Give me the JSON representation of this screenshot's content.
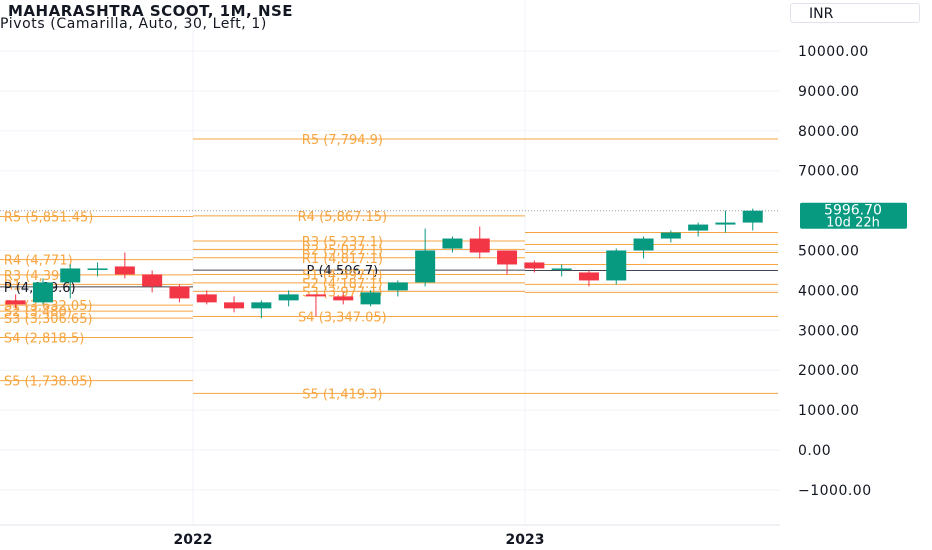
{
  "header": {
    "title": "MAHARASHTRA SCOOT, 1M, NSE",
    "subtitle": "Pivots (Camarilla, Auto, 30, Left, 1)",
    "currency": "INR"
  },
  "price_badge": {
    "price": "5996.70",
    "countdown": "10d 22h"
  },
  "colors": {
    "up": "#26a69a",
    "up_body": "#089981",
    "down": "#f23645",
    "pivot": "#f7a541",
    "pivot_label": "#f7a541",
    "grid": "#f0f3fa",
    "axis_text": "#131722"
  },
  "chart_data": {
    "type": "candlestick",
    "title": "MAHARASHTRA SCOOT, 1M, NSE",
    "y_ticks": [
      "10000.00",
      "9000.00",
      "8000.00",
      "7000.00",
      "5000.00",
      "4000.00",
      "3000.00",
      "2000.00",
      "1000.00",
      "0.00",
      "−1000.00"
    ],
    "y_tick_values": [
      10000,
      9000,
      8000,
      7000,
      5000,
      4000,
      3000,
      2000,
      1000,
      0,
      -1000
    ],
    "ylim": [
      -1400,
      11100
    ],
    "x_ticks": [
      "2022",
      "2023"
    ],
    "last_price": 5996.7,
    "candles": [
      {
        "o": 3750,
        "h": 3900,
        "l": 3550,
        "c": 3650
      },
      {
        "o": 3700,
        "h": 4300,
        "l": 3650,
        "c": 4200
      },
      {
        "o": 4200,
        "h": 4650,
        "l": 3800,
        "c": 4550
      },
      {
        "o": 4550,
        "h": 4700,
        "l": 4350,
        "c": 4550
      },
      {
        "o": 4600,
        "h": 4950,
        "l": 4300,
        "c": 4400
      },
      {
        "o": 4400,
        "h": 4500,
        "l": 3950,
        "c": 4100
      },
      {
        "o": 4100,
        "h": 4150,
        "l": 3700,
        "c": 3800
      },
      {
        "o": 3900,
        "h": 4000,
        "l": 3650,
        "c": 3700
      },
      {
        "o": 3700,
        "h": 3850,
        "l": 3450,
        "c": 3550
      },
      {
        "o": 3550,
        "h": 3750,
        "l": 3300,
        "c": 3700
      },
      {
        "o": 3750,
        "h": 4000,
        "l": 3600,
        "c": 3900
      },
      {
        "o": 3900,
        "h": 3900,
        "l": 3350,
        "c": 3850
      },
      {
        "o": 3850,
        "h": 3950,
        "l": 3650,
        "c": 3750
      },
      {
        "o": 3650,
        "h": 4000,
        "l": 3600,
        "c": 3950
      },
      {
        "o": 4000,
        "h": 4250,
        "l": 3850,
        "c": 4200
      },
      {
        "o": 4200,
        "h": 5550,
        "l": 4100,
        "c": 5000
      },
      {
        "o": 5050,
        "h": 5350,
        "l": 4950,
        "c": 5300
      },
      {
        "o": 5300,
        "h": 5600,
        "l": 4800,
        "c": 4950
      },
      {
        "o": 5000,
        "h": 5000,
        "l": 4400,
        "c": 4650
      },
      {
        "o": 4700,
        "h": 4750,
        "l": 4450,
        "c": 4550
      },
      {
        "o": 4550,
        "h": 4650,
        "l": 4350,
        "c": 4550
      },
      {
        "o": 4450,
        "h": 4500,
        "l": 4100,
        "c": 4250
      },
      {
        "o": 4250,
        "h": 5050,
        "l": 4150,
        "c": 5000
      },
      {
        "o": 5000,
        "h": 5350,
        "l": 4800,
        "c": 5300
      },
      {
        "o": 5300,
        "h": 5500,
        "l": 5200,
        "c": 5450
      },
      {
        "o": 5500,
        "h": 5700,
        "l": 5350,
        "c": 5650
      },
      {
        "o": 5650,
        "h": 6000,
        "l": 5450,
        "c": 5700
      },
      {
        "o": 5700,
        "h": 6050,
        "l": 5500,
        "c": 5997
      }
    ],
    "pivot_periods": [
      {
        "levels": [
          {
            "name": "R5",
            "value": 5851.45,
            "label": "R5 (5,851.45)"
          },
          {
            "name": "R4",
            "value": 4771,
            "label": "R4 (4,771)"
          },
          {
            "name": "R3",
            "value": 4390,
            "label": "R3 (4,390)"
          },
          {
            "name": "R1",
            "value": 4150,
            "label": "R1"
          },
          {
            "name": "P",
            "value": 4089.6,
            "label": "P (4,089.6)"
          },
          {
            "name": "S1",
            "value": 3632.05,
            "label": "S1 (3,632.05)"
          },
          {
            "name": "S2",
            "value": 3480,
            "label": "S2 (3,480)"
          },
          {
            "name": "S3",
            "value": 3306.65,
            "label": "S3 (3,306.65)"
          },
          {
            "name": "S4",
            "value": 2818.5,
            "label": "S4 (2,818.5)"
          },
          {
            "name": "S5",
            "value": 1738.05,
            "label": "S5 (1,738.05)"
          }
        ]
      },
      {
        "levels": [
          {
            "name": "R5",
            "value": 7794.9,
            "label": "R5 (7,794.9)"
          },
          {
            "name": "R4",
            "value": 5867.15,
            "label": "R4 (5,867.15)"
          },
          {
            "name": "R3",
            "value": 5237.1,
            "label": "R3 (5,237.1)"
          },
          {
            "name": "R2",
            "value": 5027.1,
            "label": "R2 (5,027.1)"
          },
          {
            "name": "R1",
            "value": 4817.1,
            "label": "R1 (4,817.1)"
          },
          {
            "name": "P",
            "value": 4506.7,
            "label": "P (4,506.7)"
          },
          {
            "name": "S1",
            "value": 4397.1,
            "label": "S1 (4,397.1)"
          },
          {
            "name": "S2",
            "value": 4187.1,
            "label": "S2 (4,187.1)"
          },
          {
            "name": "S3",
            "value": 3977.1,
            "label": "S3 (3,977.1)"
          },
          {
            "name": "S4",
            "value": 3347.05,
            "label": "S4 (3,347.05)"
          },
          {
            "name": "S5",
            "value": 1419.3,
            "label": "S5 (1,419.3)"
          }
        ]
      },
      {
        "levels": [
          {
            "name": "R5",
            "value": 7794.9
          },
          {
            "name": "R4",
            "value": 5450
          },
          {
            "name": "R3",
            "value": 5150
          },
          {
            "name": "R2",
            "value": 4950
          },
          {
            "name": "R1",
            "value": 4650
          },
          {
            "name": "P",
            "value": 4500
          },
          {
            "name": "S1",
            "value": 4150
          },
          {
            "name": "S2",
            "value": 3950
          },
          {
            "name": "S3",
            "value": 3347
          },
          {
            "name": "S5",
            "value": 1419.3
          }
        ]
      }
    ]
  }
}
